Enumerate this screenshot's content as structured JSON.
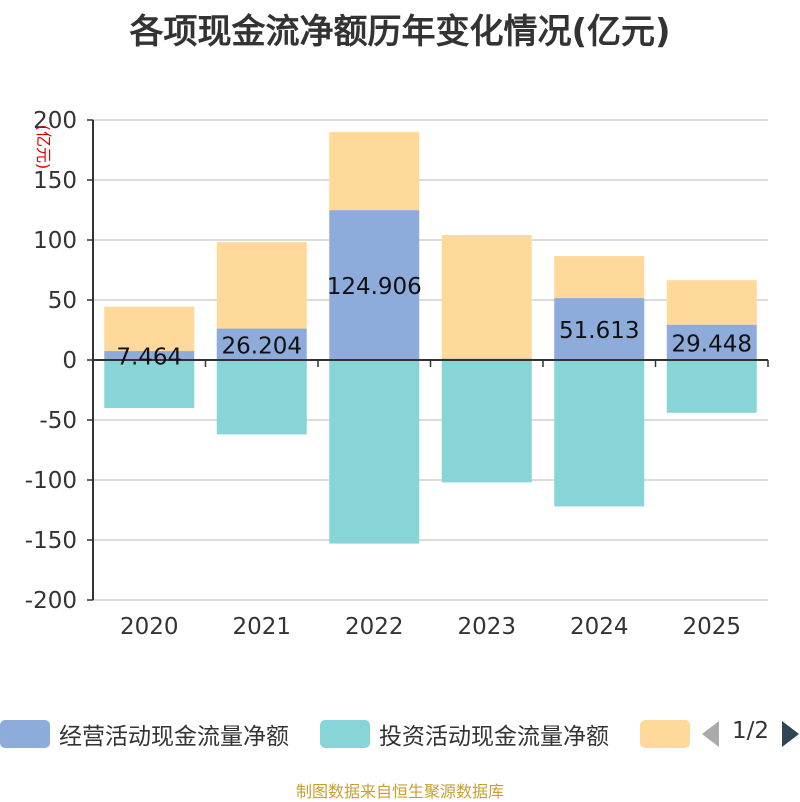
{
  "page": {
    "title": "各项现金流净额历年变化情况(亿元)",
    "footer": "制图数据来自恒生聚源数据库"
  },
  "legend": {
    "items": [
      {
        "label": "经营活动现金流量净额",
        "color": "#8eacdb"
      },
      {
        "label": "投资活动现金流量净额",
        "color": "#88d5d8"
      },
      {
        "label": "",
        "color": "#ffd99a"
      }
    ],
    "page_indicator": "1/2"
  },
  "chart_data": {
    "type": "bar",
    "stacked": true,
    "title": "各项现金流净额历年变化情况(亿元)",
    "ylabel": "(亿元)",
    "xlabel": "",
    "ylim": [
      -200,
      200
    ],
    "yticks": [
      200,
      150,
      100,
      50,
      0,
      -50,
      -100,
      -150,
      -200
    ],
    "categories": [
      "2020",
      "2021",
      "2022",
      "2023",
      "2024",
      "2025"
    ],
    "series": [
      {
        "name": "经营活动现金流量净额",
        "color": "#8eacdb",
        "values": [
          7.464,
          26.204,
          124.906,
          1.2,
          51.613,
          29.448
        ],
        "labels": [
          "7.464",
          "26.204",
          "124.906",
          "",
          "51.613",
          "29.448"
        ]
      },
      {
        "name": "投资活动现金流量净额",
        "color": "#88d5d8",
        "values": [
          -40,
          -62,
          -153,
          -102,
          -122,
          -44
        ]
      },
      {
        "name": "",
        "color": "#ffd99a",
        "values": [
          37,
          72,
          65,
          103,
          35,
          37
        ]
      }
    ]
  }
}
